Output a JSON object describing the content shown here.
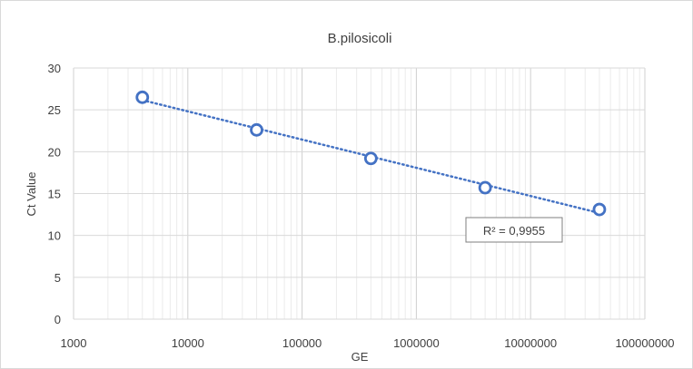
{
  "chart_data": {
    "type": "scatter",
    "title": "B.pilosicoli",
    "xlabel": "GE",
    "ylabel": "Ct Value",
    "x_scale": "log",
    "xlim": [
      1000,
      100000000
    ],
    "ylim": [
      0,
      30
    ],
    "x_ticks": [
      1000,
      10000,
      100000,
      1000000,
      10000000,
      100000000
    ],
    "x_tick_labels": [
      "1000",
      "10000",
      "100000",
      "1000000",
      "10000000",
      "100000000"
    ],
    "y_ticks": [
      0,
      5,
      10,
      15,
      20,
      25,
      30
    ],
    "y_tick_labels": [
      "0",
      "5",
      "10",
      "15",
      "20",
      "25",
      "30"
    ],
    "grid": true,
    "legend": "none",
    "series": [
      {
        "x": [
          4000,
          40000,
          400000,
          4000000,
          40000000
        ],
        "y": [
          26.5,
          22.6,
          19.2,
          15.7,
          13.1
        ],
        "color": "#4472c4",
        "marker": "open-circle"
      }
    ],
    "trendline": {
      "type": "logarithmic",
      "style": "dotted",
      "color": "#4472c4",
      "x_range": [
        4000,
        40000000
      ],
      "r2_label": "R² = 0,9955"
    }
  }
}
